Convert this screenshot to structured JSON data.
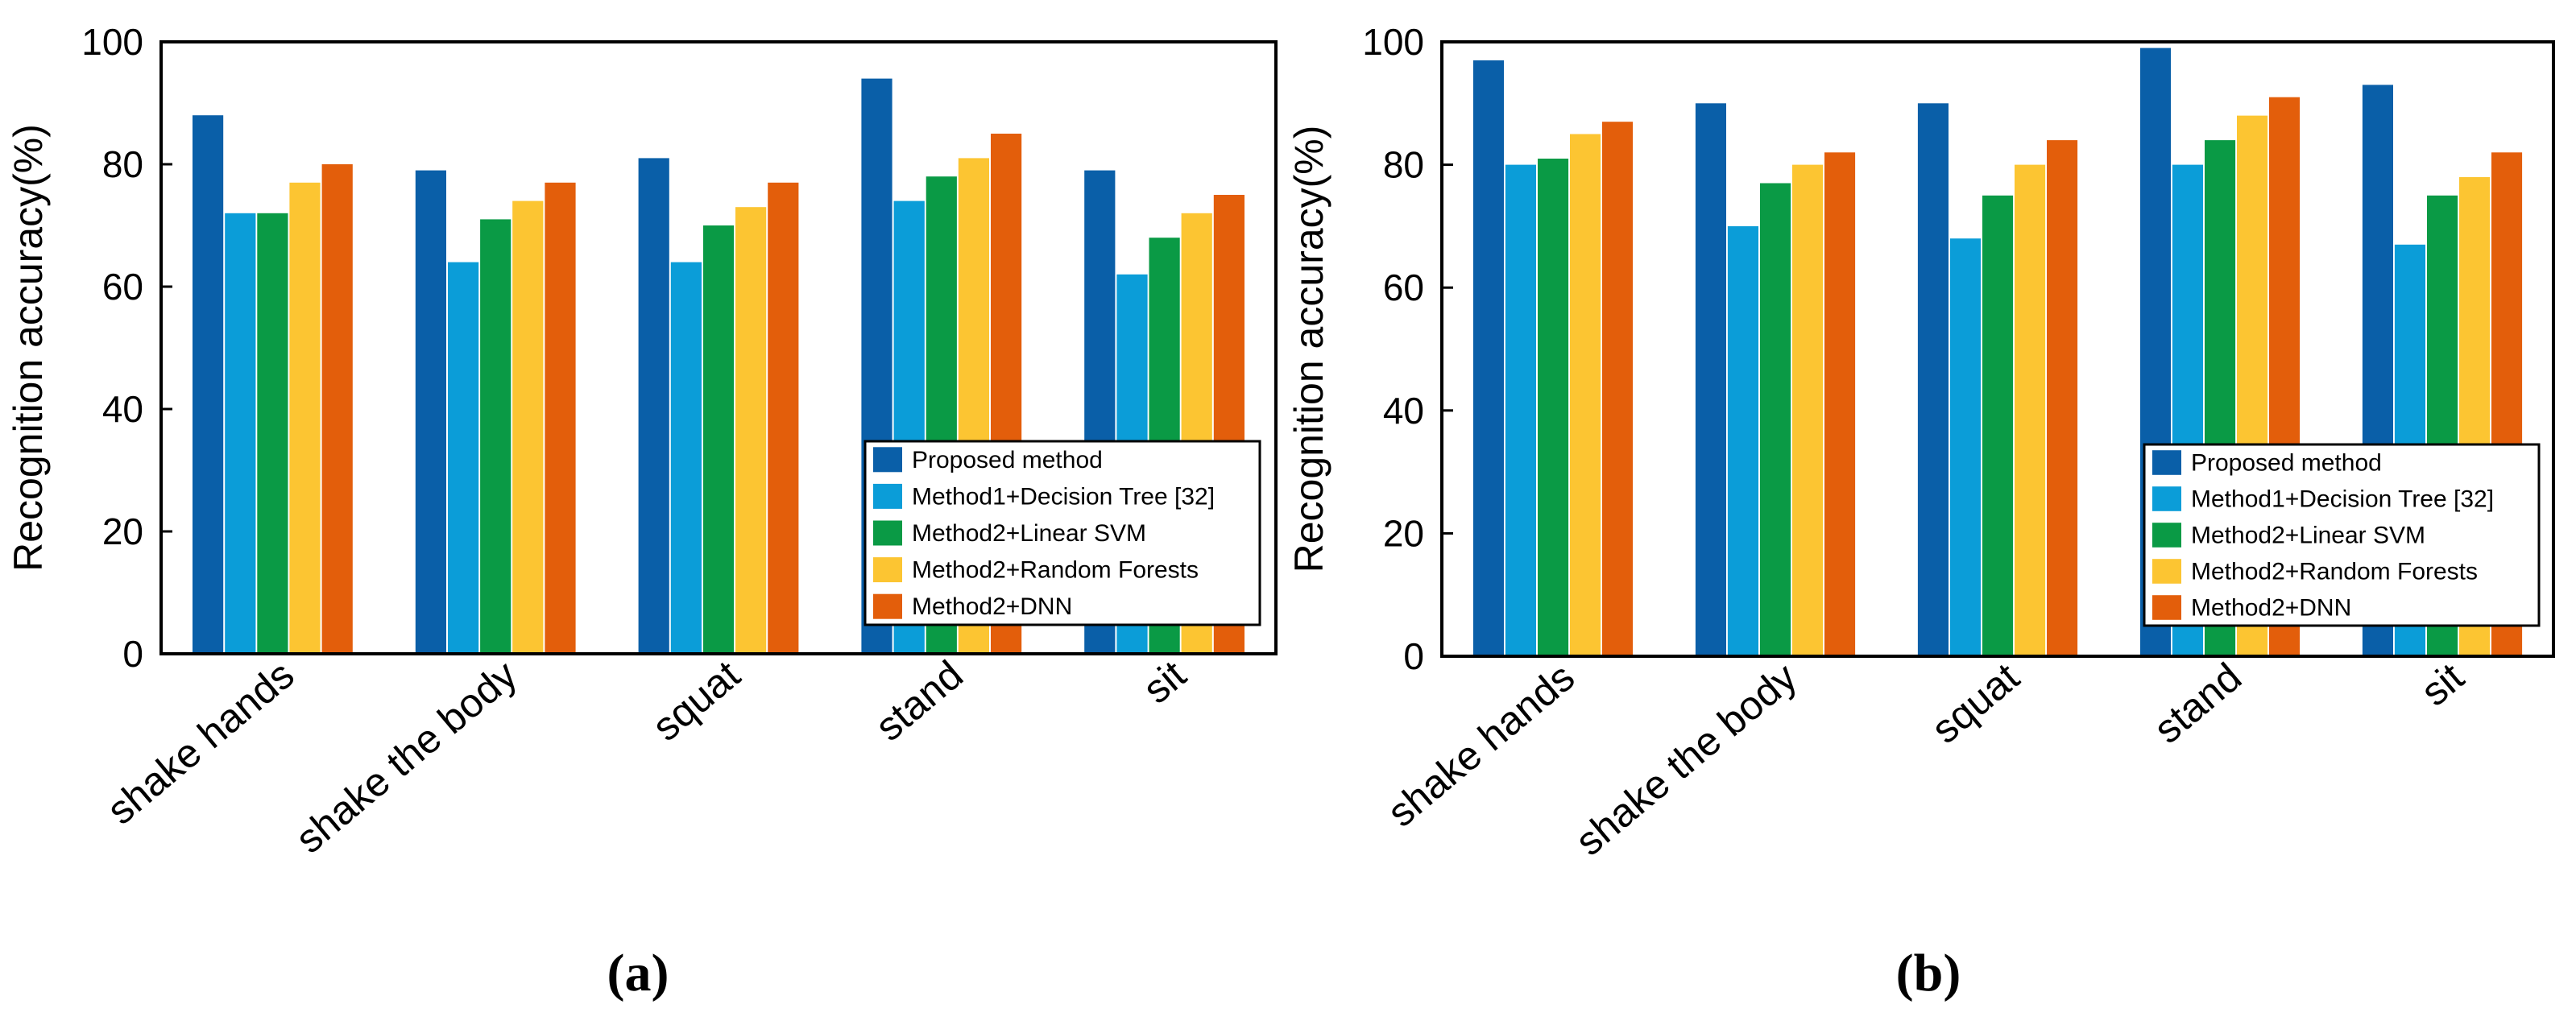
{
  "figure": {
    "panels": [
      "a",
      "b"
    ]
  },
  "chart_data": [
    {
      "type": "bar",
      "panel_label": "a",
      "categories": [
        "shake hands",
        "shake the body",
        "squat",
        "stand",
        "sit"
      ],
      "series": [
        {
          "name": "Proposed method",
          "color": "#0a5fa8",
          "values": [
            88,
            79,
            81,
            94,
            79
          ]
        },
        {
          "name": "Method1+Decision Tree [32]",
          "color": "#0b9dd8",
          "values": [
            72,
            64,
            64,
            74,
            62
          ]
        },
        {
          "name": "Method2+Linear SVM",
          "color": "#0a9a45",
          "values": [
            72,
            71,
            70,
            78,
            68
          ]
        },
        {
          "name": "Method2+Random Forests",
          "color": "#fcc532",
          "values": [
            77,
            74,
            73,
            81,
            72
          ]
        },
        {
          "name": "Method2+DNN",
          "color": "#e35e0b",
          "values": [
            80,
            77,
            77,
            85,
            75
          ]
        }
      ],
      "title": "",
      "xlabel": "",
      "ylabel": "Recognition accuracy(%)",
      "ylim": [
        0,
        100
      ],
      "yticks": [
        0,
        20,
        40,
        60,
        80,
        100
      ],
      "grid": false,
      "legend_position": "lower-right"
    },
    {
      "type": "bar",
      "panel_label": "b",
      "categories": [
        "shake hands",
        "shake the body",
        "squat",
        "stand",
        "sit"
      ],
      "series": [
        {
          "name": "Proposed method",
          "color": "#0a5fa8",
          "values": [
            97,
            90,
            90,
            99,
            93
          ]
        },
        {
          "name": "Method1+Decision Tree [32]",
          "color": "#0b9dd8",
          "values": [
            80,
            70,
            68,
            80,
            67
          ]
        },
        {
          "name": "Method2+Linear SVM",
          "color": "#0a9a45",
          "values": [
            81,
            77,
            75,
            84,
            75
          ]
        },
        {
          "name": "Method2+Random Forests",
          "color": "#fcc532",
          "values": [
            85,
            80,
            80,
            88,
            78
          ]
        },
        {
          "name": "Method2+DNN",
          "color": "#e35e0b",
          "values": [
            87,
            82,
            84,
            91,
            82
          ]
        }
      ],
      "title": "",
      "xlabel": "",
      "ylabel": "Recognition accuracy(%)",
      "ylim": [
        0,
        100
      ],
      "yticks": [
        0,
        20,
        40,
        60,
        80,
        100
      ],
      "grid": false,
      "legend_position": "lower-right"
    }
  ]
}
